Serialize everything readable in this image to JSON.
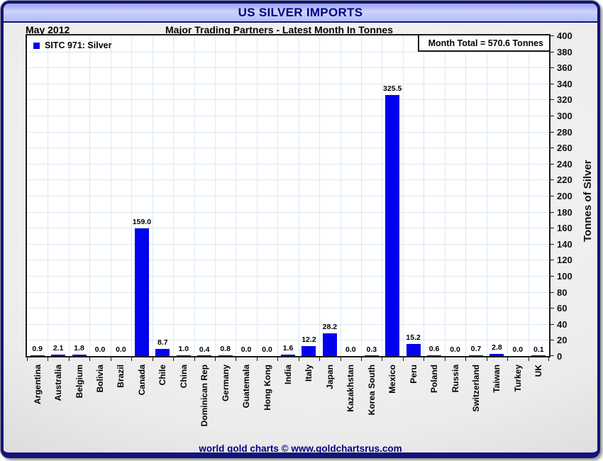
{
  "window": {
    "title": "US SILVER IMPORTS"
  },
  "header": {
    "date_label": "May 2012",
    "subtitle": "Major Trading Partners - Latest Month In Tonnes"
  },
  "legend": {
    "label": "SITC 971: Silver"
  },
  "annotation": {
    "month_total": "Month Total = 570.6 Tonnes"
  },
  "footer": {
    "credit": "world gold charts © www.goldchartsrus.com"
  },
  "colors": {
    "bar": "#0202ee",
    "navy": "#000080",
    "grid": "#dce8f6",
    "axis": "#1a1a1a",
    "titlebar_top": "#99a2ee",
    "titlebar_mid": "#ccd3fc",
    "titlebar_bottom": "#b4bcf7"
  },
  "chart_data": {
    "type": "bar",
    "title": "US Silver Imports - Major Trading Partners - Latest Month In Tonnes",
    "period": "May 2012",
    "series_name": "SITC 971: Silver",
    "categories": [
      "Argentina",
      "Australia",
      "Belgium",
      "Bolivia",
      "Brazil",
      "Canada",
      "Chile",
      "China",
      "Dominican Rep",
      "Germany",
      "Guatemala",
      "Hong Kong",
      "India",
      "Italy",
      "Japan",
      "Kazakhstan",
      "Korea South",
      "Mexico",
      "Peru",
      "Poland",
      "Russia",
      "Switzerland",
      "Taiwan",
      "Turkey",
      "UK"
    ],
    "values": [
      0.9,
      2.1,
      1.8,
      0.0,
      0.0,
      159.0,
      8.7,
      1.0,
      0.4,
      0.8,
      0.0,
      0.0,
      1.6,
      12.2,
      28.2,
      0.0,
      0.3,
      325.5,
      15.2,
      0.6,
      0.0,
      0.7,
      2.8,
      0.0,
      0.1
    ],
    "value_labels": [
      "0.9",
      "2.1",
      "1.8",
      "0.0",
      "0.0",
      "159.0",
      "8.7",
      "1.0",
      "0.4",
      "0.8",
      "0.0",
      "0.0",
      "1.6",
      "12.2",
      "28.2",
      "0.0",
      "0.3",
      "325.5",
      "15.2",
      "0.6",
      "0.0",
      "0.7",
      "2.8",
      "0.0",
      "0.1"
    ],
    "month_total_tonnes": 570.6,
    "xlabel": "",
    "ylabel": "Tonnes of Silver",
    "ylim": [
      0,
      400
    ],
    "ytick_step": 20,
    "grid": true,
    "legend_position": "top-left"
  }
}
